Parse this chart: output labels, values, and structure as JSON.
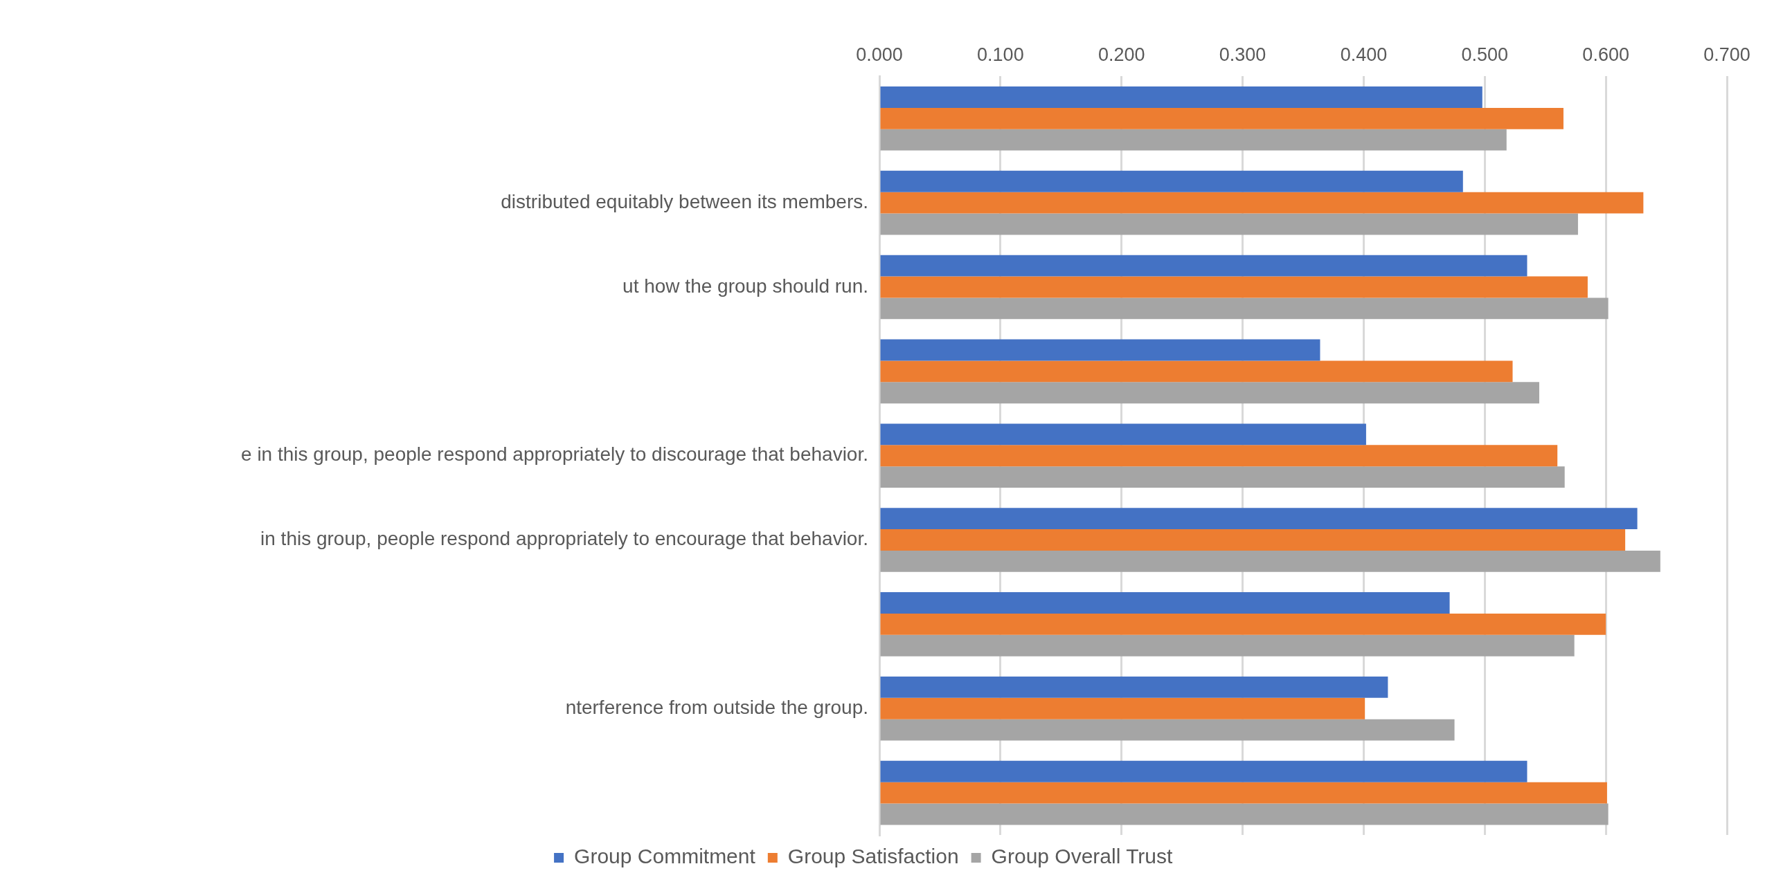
{
  "chart_data": {
    "type": "bar",
    "orientation": "horizontal",
    "categories": [
      null,
      "distributed equitably between its members.",
      "ut how the group should run.",
      null,
      "e in this group, people respond appropriately to discourage that behavior.",
      "in this group, people respond appropriately to encourage that behavior.",
      null,
      "nterference from outside the group.",
      null
    ],
    "series": [
      {
        "name": "Group Commitment",
        "color": "#4472c4",
        "values": [
          0.498,
          0.482,
          0.535,
          0.364,
          0.402,
          0.626,
          0.471,
          0.42,
          0.535
        ]
      },
      {
        "name": "Group Satisfaction",
        "color": "#ed7d31",
        "values": [
          0.565,
          0.631,
          0.585,
          0.523,
          0.56,
          0.616,
          0.6,
          0.401,
          0.601
        ]
      },
      {
        "name": "Group Overall Trust",
        "color": "#a5a5a5",
        "values": [
          0.518,
          0.577,
          0.602,
          0.545,
          0.566,
          0.645,
          0.574,
          0.475,
          0.602
        ]
      }
    ],
    "xlim": [
      0,
      0.7
    ],
    "xticks": [
      {
        "value": 0,
        "label": "0.000"
      },
      {
        "value": 0.1,
        "label": "0.100"
      },
      {
        "value": 0.2,
        "label": "0.200"
      },
      {
        "value": 0.3,
        "label": "0.300"
      },
      {
        "value": 0.4,
        "label": "0.400"
      },
      {
        "value": 0.5,
        "label": "0.500"
      },
      {
        "value": 0.6,
        "label": "0.600"
      },
      {
        "value": 0.7,
        "label": "0.700"
      }
    ],
    "grid": "x",
    "legend": "bottom"
  }
}
